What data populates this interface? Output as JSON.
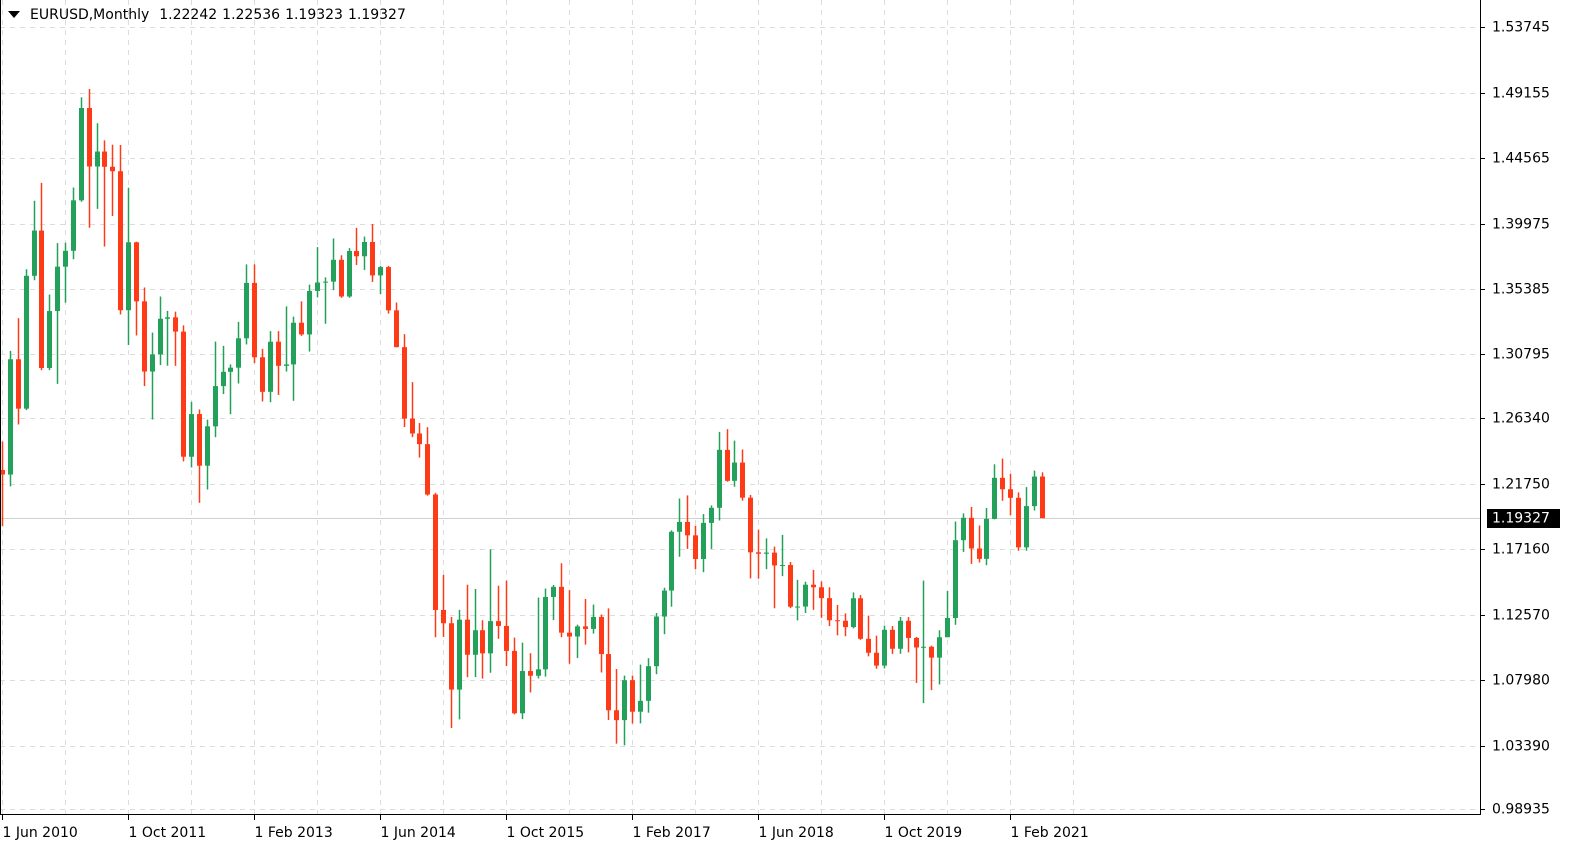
{
  "chart_data": {
    "type": "candlestick",
    "title": "EURUSD,Monthly",
    "x": [
      "2010-06-01",
      "2010-07-01",
      "2010-08-01",
      "2010-09-01",
      "2010-10-01",
      "2010-11-01",
      "2010-12-01",
      "2011-01-01",
      "2011-02-01",
      "2011-03-01",
      "2011-04-01",
      "2011-05-01",
      "2011-06-01",
      "2011-07-01",
      "2011-08-01",
      "2011-09-01",
      "2011-10-01",
      "2011-11-01",
      "2011-12-01",
      "2012-01-01",
      "2012-02-01",
      "2012-03-01",
      "2012-04-01",
      "2012-05-01",
      "2012-06-01",
      "2012-07-01",
      "2012-08-01",
      "2012-09-01",
      "2012-10-01",
      "2012-11-01",
      "2012-12-01",
      "2013-01-01",
      "2013-02-01",
      "2013-03-01",
      "2013-04-01",
      "2013-05-01",
      "2013-06-01",
      "2013-07-01",
      "2013-08-01",
      "2013-09-01",
      "2013-10-01",
      "2013-11-01",
      "2013-12-01",
      "2014-01-01",
      "2014-02-01",
      "2014-03-01",
      "2014-04-01",
      "2014-05-01",
      "2014-06-01",
      "2014-07-01",
      "2014-08-01",
      "2014-09-01",
      "2014-10-01",
      "2014-11-01",
      "2014-12-01",
      "2015-01-01",
      "2015-02-01",
      "2015-03-01",
      "2015-04-01",
      "2015-05-01",
      "2015-06-01",
      "2015-07-01",
      "2015-08-01",
      "2015-09-01",
      "2015-10-01",
      "2015-11-01",
      "2015-12-01",
      "2016-01-01",
      "2016-02-01",
      "2016-03-01",
      "2016-04-01",
      "2016-05-01",
      "2016-06-01",
      "2016-07-01",
      "2016-08-01",
      "2016-09-01",
      "2016-10-01",
      "2016-11-01",
      "2016-12-01",
      "2017-01-01",
      "2017-02-01",
      "2017-03-01",
      "2017-04-01",
      "2017-05-01",
      "2017-06-01",
      "2017-07-01",
      "2017-08-01",
      "2017-09-01",
      "2017-10-01",
      "2017-11-01",
      "2017-12-01",
      "2018-01-01",
      "2018-02-01",
      "2018-03-01",
      "2018-04-01",
      "2018-05-01",
      "2018-06-01",
      "2018-07-01",
      "2018-08-01",
      "2018-09-01",
      "2018-10-01",
      "2018-11-01",
      "2018-12-01",
      "2019-01-01",
      "2019-02-01",
      "2019-03-01",
      "2019-04-01",
      "2019-05-01",
      "2019-06-01",
      "2019-07-01",
      "2019-08-01",
      "2019-09-01",
      "2019-10-01",
      "2019-11-01",
      "2019-12-01",
      "2020-01-01",
      "2020-02-01",
      "2020-03-01",
      "2020-04-01",
      "2020-05-01",
      "2020-06-01",
      "2020-07-01",
      "2020-08-01",
      "2020-09-01",
      "2020-10-01",
      "2020-11-01",
      "2020-12-01",
      "2021-01-01",
      "2021-02-01",
      "2021-03-01",
      "2021-04-01",
      "2021-05-01",
      "2021-06-01"
    ],
    "open": [
      1.227,
      1.2238,
      1.3046,
      1.27,
      1.3631,
      1.3948,
      1.2985,
      1.3384,
      1.3695,
      1.3806,
      1.416,
      1.4807,
      1.4397,
      1.4502,
      1.4395,
      1.4364,
      1.339,
      1.3866,
      1.3452,
      1.296,
      1.308,
      1.333,
      1.334,
      1.324,
      1.2363,
      1.2662,
      1.23,
      1.2576,
      1.2858,
      1.2958,
      1.2987,
      1.3193,
      1.3581,
      1.306,
      1.2818,
      1.3169,
      1.3,
      1.301,
      1.3302,
      1.322,
      1.3525,
      1.3584,
      1.359,
      1.3743,
      1.3486,
      1.3805,
      1.3768,
      1.3868,
      1.3634,
      1.3692,
      1.3389,
      1.3131,
      1.263,
      1.2526,
      1.2451,
      1.2098,
      1.1289,
      1.1196,
      1.0731,
      1.1221,
      1.0975,
      1.1147,
      1.0985,
      1.1211,
      1.1177,
      1.1002,
      1.0565,
      1.0861,
      1.0828,
      1.0873,
      1.138,
      1.1451,
      1.113,
      1.1103,
      1.1174,
      1.1156,
      1.124,
      1.098,
      1.0586,
      1.0517,
      1.0797,
      1.0576,
      1.0652,
      1.0895,
      1.1243,
      1.1425,
      1.1837,
      1.1906,
      1.1812,
      1.1646,
      1.1899,
      1.2005,
      1.2411,
      1.2194,
      1.2322,
      1.2076,
      1.1693,
      1.1683,
      1.1691,
      1.1601,
      1.1604,
      1.1312,
      1.1313,
      1.1466,
      1.1448,
      1.1372,
      1.1217,
      1.1213,
      1.1169,
      1.1371,
      1.1087,
      1.0989,
      1.0899,
      1.115,
      1.1017,
      1.1213,
      1.1093,
      1.1026,
      1.1031,
      1.0955,
      1.1098,
      1.1233,
      1.1778,
      1.1935,
      1.172,
      1.1647,
      1.1927,
      1.2215,
      1.2135,
      1.2075,
      1.1728,
      1.2017,
      1.22242
    ],
    "high": [
      1.247,
      1.3105,
      1.3334,
      1.3677,
      1.4157,
      1.4282,
      1.35,
      1.386,
      1.3863,
      1.425,
      1.4882,
      1.494,
      1.47,
      1.458,
      1.455,
      1.4548,
      1.4248,
      1.387,
      1.3549,
      1.3233,
      1.3486,
      1.3385,
      1.338,
      1.3284,
      1.2748,
      1.2694,
      1.2623,
      1.317,
      1.314,
      1.301,
      1.3308,
      1.3711,
      1.3711,
      1.3119,
      1.3243,
      1.3243,
      1.3417,
      1.3345,
      1.3452,
      1.3569,
      1.3832,
      1.362,
      1.3893,
      1.3775,
      1.3825,
      1.3967,
      1.3906,
      1.3994,
      1.37,
      1.37,
      1.3444,
      1.3222,
      1.2886,
      1.2599,
      1.257,
      1.211,
      1.1535,
      1.124,
      1.129,
      1.1466,
      1.1436,
      1.1217,
      1.1714,
      1.1459,
      1.1495,
      1.1095,
      1.106,
      1.0986,
      1.1376,
      1.1439,
      1.1464,
      1.1616,
      1.1428,
      1.1186,
      1.1366,
      1.1327,
      1.1257,
      1.13,
      1.0875,
      1.0829,
      1.0829,
      1.0906,
      1.0951,
      1.1268,
      1.1445,
      1.1847,
      1.207,
      1.2092,
      1.188,
      1.1961,
      1.2022,
      1.2537,
      1.2556,
      1.2476,
      1.2414,
      1.2095,
      1.1852,
      1.1791,
      1.1733,
      1.1815,
      1.1625,
      1.15,
      1.1487,
      1.157,
      1.1489,
      1.1448,
      1.1324,
      1.1265,
      1.1412,
      1.1393,
      1.1249,
      1.1109,
      1.1179,
      1.1176,
      1.124,
      1.1239,
      1.11,
      1.1495,
      1.1039,
      1.1147,
      1.1422,
      1.1909,
      1.1966,
      1.2011,
      1.1881,
      1.2004,
      1.231,
      1.235,
      1.2243,
      1.2113,
      1.215,
      1.2266,
      1.22536
    ],
    "low": [
      1.1876,
      1.2155,
      1.2589,
      1.269,
      1.36,
      1.2969,
      1.297,
      1.2874,
      1.3443,
      1.3747,
      1.415,
      1.3968,
      1.41,
      1.3836,
      1.405,
      1.336,
      1.3146,
      1.3213,
      1.2858,
      1.2624,
      1.3005,
      1.3001,
      1.3,
      1.233,
      1.2288,
      1.204,
      1.2133,
      1.25,
      1.2802,
      1.2661,
      1.2876,
      1.315,
      1.3019,
      1.275,
      1.2745,
      1.2796,
      1.296,
      1.2755,
      1.321,
      1.31,
      1.348,
      1.3295,
      1.3531,
      1.3477,
      1.3477,
      1.3707,
      1.3672,
      1.3588,
      1.3503,
      1.3366,
      1.313,
      1.2571,
      1.25,
      1.2357,
      1.209,
      1.1098,
      1.11,
      1.0462,
      1.0522,
      1.0818,
      1.0819,
      1.0808,
      1.0849,
      1.1087,
      1.0896,
      1.0557,
      1.0524,
      1.0711,
      1.0809,
      1.0822,
      1.1218,
      1.1098,
      1.0912,
      1.0952,
      1.1046,
      1.1123,
      1.0851,
      1.0518,
      1.0352,
      1.034,
      1.0493,
      1.0494,
      1.0569,
      1.0839,
      1.1119,
      1.1312,
      1.1662,
      1.1717,
      1.1574,
      1.1554,
      1.1717,
      1.1916,
      1.2188,
      1.2153,
      1.2055,
      1.151,
      1.1508,
      1.1575,
      1.1301,
      1.1526,
      1.1302,
      1.1216,
      1.1268,
      1.129,
      1.1234,
      1.1176,
      1.1111,
      1.1105,
      1.116,
      1.108,
      1.0964,
      1.0877,
      1.0879,
      1.0981,
      1.0982,
      1.0992,
      1.0778,
      1.0636,
      1.0727,
      1.0767,
      1.1098,
      1.1185,
      1.1696,
      1.1612,
      1.1622,
      1.1603,
      1.1924,
      1.2054,
      1.1952,
      1.1704,
      1.1704,
      1.1986,
      1.19323
    ],
    "close": [
      1.2238,
      1.3046,
      1.27,
      1.3631,
      1.3948,
      1.2985,
      1.3384,
      1.3695,
      1.3806,
      1.416,
      1.4807,
      1.4397,
      1.4502,
      1.4395,
      1.4364,
      1.339,
      1.3866,
      1.3452,
      1.296,
      1.308,
      1.333,
      1.334,
      1.324,
      1.2363,
      1.2662,
      1.23,
      1.2576,
      1.2858,
      1.2958,
      1.2987,
      1.3193,
      1.3581,
      1.306,
      1.2818,
      1.3169,
      1.3,
      1.301,
      1.3302,
      1.322,
      1.3525,
      1.3584,
      1.359,
      1.3743,
      1.3486,
      1.3805,
      1.3768,
      1.3868,
      1.3634,
      1.3692,
      1.3389,
      1.3131,
      1.263,
      1.2526,
      1.2451,
      1.2098,
      1.1289,
      1.1196,
      1.0731,
      1.1221,
      1.0975,
      1.1147,
      1.0985,
      1.1211,
      1.1177,
      1.1002,
      1.0565,
      1.0861,
      1.0828,
      1.0873,
      1.138,
      1.1451,
      1.113,
      1.1103,
      1.1174,
      1.1156,
      1.124,
      1.098,
      1.0586,
      1.0517,
      1.0797,
      1.0576,
      1.0652,
      1.0895,
      1.1243,
      1.1425,
      1.1837,
      1.1906,
      1.1812,
      1.1646,
      1.1899,
      1.2005,
      1.2411,
      1.2194,
      1.2322,
      1.2076,
      1.1693,
      1.1683,
      1.1691,
      1.1601,
      1.1604,
      1.1312,
      1.1313,
      1.1466,
      1.1448,
      1.1372,
      1.1217,
      1.1213,
      1.1169,
      1.1371,
      1.1087,
      1.0989,
      1.0899,
      1.115,
      1.1017,
      1.1213,
      1.1093,
      1.1026,
      1.1031,
      1.0955,
      1.1098,
      1.1233,
      1.1778,
      1.1935,
      1.172,
      1.1647,
      1.1927,
      1.2215,
      1.2135,
      1.2075,
      1.1728,
      1.2017,
      1.2224,
      1.19327
    ],
    "up_color": "#23a15a",
    "down_color": "#ff3a17",
    "ylim": [
      0.9859,
      1.5564
    ],
    "yticks": [
      0.98935,
      {
        "value": 1.0339,
        "label": "1.03390"
      },
      {
        "value": 1.0798,
        "label": "1.07980"
      },
      {
        "value": 1.1257,
        "label": "1.12570"
      },
      {
        "value": 1.1716,
        "label": "1.17160"
      },
      {
        "value": 1.2175,
        "label": "1.21750"
      },
      {
        "value": 1.2634,
        "label": "1.26340"
      },
      1.30795,
      1.35385,
      1.39975,
      1.44565,
      1.49155,
      1.53745
    ],
    "xticks": [
      {
        "value": "2010-06-01",
        "label": "1 Jun 2010"
      },
      {
        "value": "2011-10-01",
        "label": "1 Oct 2011"
      },
      {
        "value": "2013-02-01",
        "label": "1 Feb 2013"
      },
      {
        "value": "2014-06-01",
        "label": "1 Jun 2014"
      },
      {
        "value": "2015-10-01",
        "label": "1 Oct 2015"
      },
      {
        "value": "2017-02-01",
        "label": "1 Feb 2017"
      },
      {
        "value": "2018-06-01",
        "label": "1 Jun 2018"
      },
      {
        "value": "2019-10-01",
        "label": "1 Oct 2019"
      },
      {
        "value": "2021-02-01",
        "label": "1 Feb 2021"
      }
    ],
    "grid": true
  }
}
